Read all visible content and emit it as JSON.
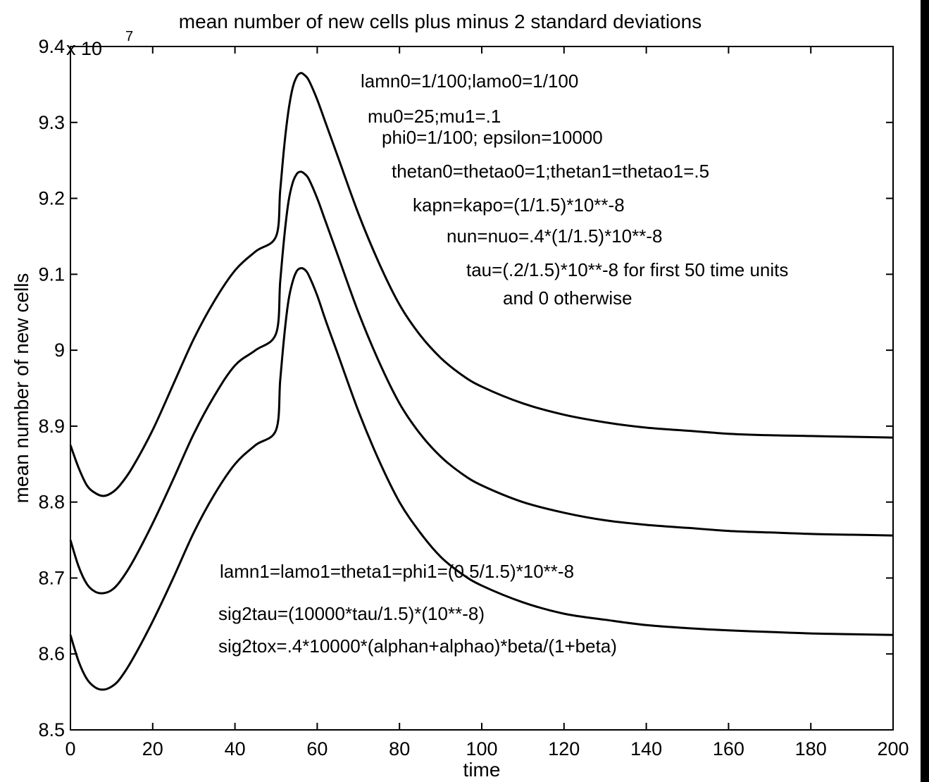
{
  "chart_data": {
    "type": "line",
    "title": "mean number of new cells plus minus 2 standard deviations",
    "xlabel": "time",
    "ylabel": "mean number of new cells",
    "y_multiplier": "x 10",
    "y_multiplier_exp": "7",
    "xlim": [
      0,
      200
    ],
    "ylim": [
      8.5,
      9.4
    ],
    "x_ticks": [
      0,
      20,
      40,
      60,
      80,
      100,
      120,
      140,
      160,
      180,
      200
    ],
    "y_ticks": [
      8.5,
      8.6,
      8.7,
      8.8,
      8.9,
      9,
      9.1,
      9.2,
      9.3,
      9.4
    ],
    "x_tick_labels": [
      "0",
      "20",
      "40",
      "60",
      "80",
      "100",
      "120",
      "140",
      "160",
      "180",
      "200"
    ],
    "y_tick_labels": [
      "8.5",
      "8.6",
      "8.7",
      "8.8",
      "8.9",
      "9",
      "9.1",
      "9.2",
      "9.3",
      "9.4"
    ],
    "grid": false,
    "series": [
      {
        "x": [
          0,
          2,
          4,
          6,
          8,
          10,
          12,
          15,
          20,
          25,
          30,
          35,
          40,
          45,
          50,
          51,
          52,
          53,
          54,
          55,
          56,
          57,
          58,
          60,
          62,
          65,
          70,
          75,
          80,
          85,
          90,
          95,
          100,
          110,
          120,
          130,
          140,
          150,
          160,
          170,
          180,
          190,
          200
        ],
        "values": [
          8.875,
          8.845,
          8.822,
          8.812,
          8.808,
          8.812,
          8.822,
          8.845,
          8.895,
          8.955,
          9.015,
          9.065,
          9.105,
          9.13,
          9.15,
          9.21,
          9.27,
          9.315,
          9.345,
          9.36,
          9.365,
          9.362,
          9.355,
          9.33,
          9.3,
          9.255,
          9.18,
          9.115,
          9.06,
          9.02,
          8.99,
          8.968,
          8.952,
          8.93,
          8.915,
          8.905,
          8.898,
          8.894,
          8.89,
          8.888,
          8.887,
          8.886,
          8.885
        ]
      },
      {
        "x": [
          0,
          2,
          4,
          6,
          8,
          10,
          12,
          15,
          20,
          25,
          30,
          35,
          40,
          45,
          50,
          51,
          52,
          53,
          54,
          55,
          56,
          57,
          58,
          60,
          62,
          65,
          70,
          75,
          80,
          85,
          90,
          95,
          100,
          110,
          120,
          130,
          140,
          150,
          160,
          170,
          180,
          190,
          200
        ],
        "values": [
          8.75,
          8.715,
          8.692,
          8.682,
          8.68,
          8.684,
          8.695,
          8.72,
          8.772,
          8.83,
          8.89,
          8.94,
          8.98,
          9.0,
          9.022,
          9.09,
          9.15,
          9.195,
          9.22,
          9.232,
          9.235,
          9.232,
          9.225,
          9.2,
          9.17,
          9.125,
          9.05,
          8.985,
          8.93,
          8.89,
          8.86,
          8.838,
          8.822,
          8.8,
          8.786,
          8.776,
          8.77,
          8.766,
          8.762,
          8.76,
          8.758,
          8.757,
          8.756
        ]
      },
      {
        "x": [
          0,
          2,
          4,
          6,
          8,
          10,
          12,
          15,
          20,
          25,
          30,
          35,
          40,
          45,
          50,
          51,
          52,
          53,
          54,
          55,
          56,
          57,
          58,
          60,
          62,
          65,
          70,
          75,
          80,
          85,
          90,
          95,
          100,
          110,
          120,
          130,
          140,
          150,
          160,
          170,
          180,
          190,
          200
        ],
        "values": [
          8.625,
          8.59,
          8.567,
          8.556,
          8.553,
          8.557,
          8.567,
          8.592,
          8.643,
          8.7,
          8.76,
          8.81,
          8.85,
          8.875,
          8.895,
          8.96,
          9.02,
          9.065,
          9.09,
          9.104,
          9.108,
          9.106,
          9.098,
          9.072,
          9.04,
          8.995,
          8.92,
          8.855,
          8.8,
          8.76,
          8.728,
          8.706,
          8.69,
          8.668,
          8.653,
          8.645,
          8.638,
          8.634,
          8.631,
          8.629,
          8.627,
          8.626,
          8.625
        ]
      }
    ],
    "annotations": [
      "lamn0=1/100;lamo0=1/100",
      "mu0=25;mu1=.1",
      "phi0=1/100; epsilon=10000",
      "thetan0=thetao0=1;thetan1=thetao1=.5",
      "kapn=kapo=(1/1.5)*10**-8",
      "nun=nuo=.4*(1/1.5)*10**-8",
      "tau=(.2/1.5)*10**-8 for first 50 time units",
      "and 0 otherwise",
      "lamn1=lamo1=theta1=phi1=(0.5/1.5)*10**-8",
      "sig2tau=(10000*tau/1.5)*(10**-8)",
      "sig2tox=.4*10000*(alphan+alphao)*beta/(1+beta)"
    ]
  }
}
